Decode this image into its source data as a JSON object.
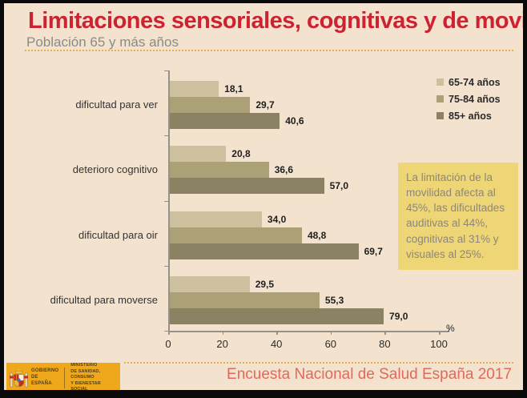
{
  "header": {
    "title": "Limitaciones sensoriales, cognitivas y de movilidad",
    "subtitle": "Población 65 y más años"
  },
  "chart_data": {
    "type": "bar",
    "orientation": "horizontal",
    "categories": [
      "dificultad para ver",
      "deterioro cognitivo",
      "dificultad para oir",
      "dificultad para moverse"
    ],
    "series": [
      {
        "name": "65-74 años",
        "color": "#ccc09e",
        "values": [
          18.1,
          20.8,
          34.0,
          29.5
        ]
      },
      {
        "name": "75-84 años",
        "color": "#aba076",
        "values": [
          29.7,
          36.6,
          48.8,
          55.3
        ]
      },
      {
        "name": "85+ años",
        "color": "#8b8263",
        "values": [
          40.6,
          57.0,
          69.7,
          79.0
        ]
      }
    ],
    "xlim": [
      0,
      100
    ],
    "x_ticks": [
      0,
      20,
      40,
      60,
      80,
      100
    ],
    "x_unit": "%",
    "value_labels": true,
    "decimal_separator": ",",
    "legend_position": "top-right",
    "grid": false
  },
  "annotation": {
    "text": "La limitación de la movilidad afecta al 45%, las dificultades auditivas al 44%, cognitivas al 31% y visuales al 25%."
  },
  "footer": {
    "source": "Encuesta Nacional de Salud España 2017",
    "logo": {
      "government_line1": "GOBIERNO",
      "government_line2": "DE ESPAÑA",
      "ministry_lines": [
        "MINISTERIO",
        "DE SANIDAD, CONSUMO",
        "Y BIENESTAR SOCIAL"
      ]
    }
  },
  "colors": {
    "background": "#f3e3ce",
    "frame": "#0a0a0a",
    "title": "#cd2232",
    "subtitle": "#8a8a8a",
    "dotted_rule": "#e9ae4e",
    "axis": "#96918a",
    "note_bg": "#eed677",
    "note_text": "#8d8779",
    "source_text": "#e2685b",
    "logo_bg": "#efa81c",
    "series": [
      "#ccc09e",
      "#aba076",
      "#8b8263"
    ]
  }
}
